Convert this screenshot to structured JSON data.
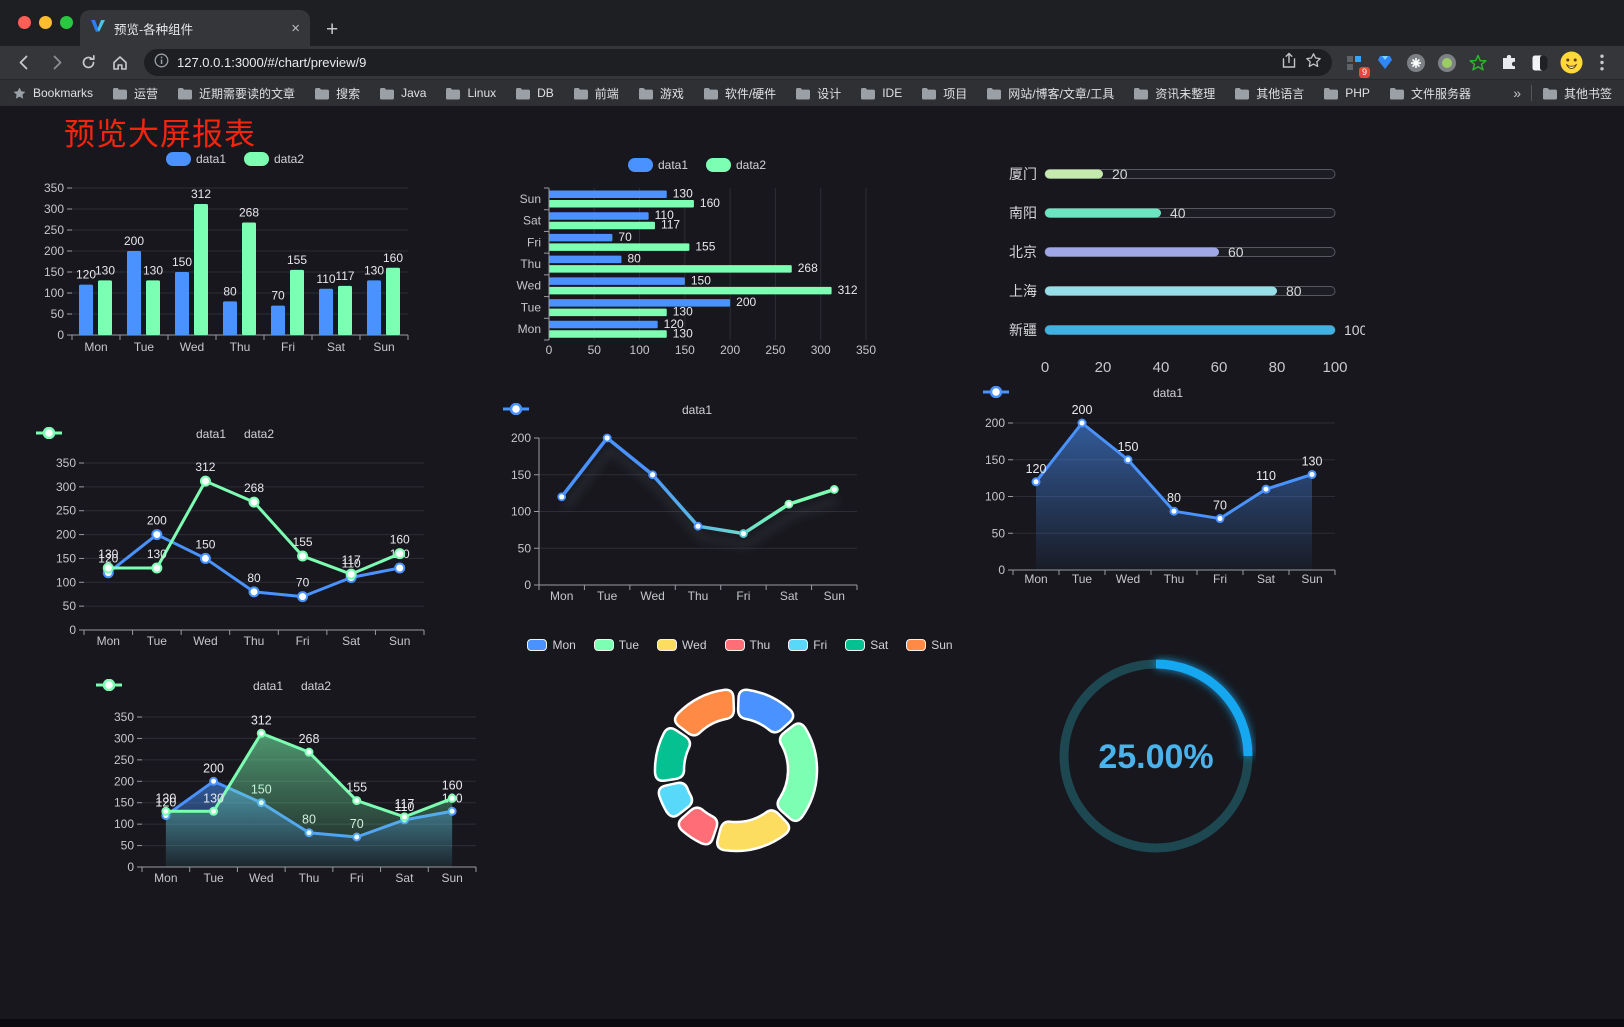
{
  "browser": {
    "tab_title": "预览-各种组件",
    "tab_close": "×",
    "new_tab": "+",
    "url": "127.0.0.1:3000/#/chart/preview/9",
    "bookmarks_label": "Bookmarks",
    "bookmarks": [
      "运营",
      "近期需要读的文章",
      "搜索",
      "Java",
      "Linux",
      "DB",
      "前端",
      "游戏",
      "软件/硬件",
      "设计",
      "IDE",
      "项目",
      "网站/博客/文章/工具",
      "资讯未整理",
      "其他语言",
      "PHP",
      "文件服务器"
    ],
    "bookmarks_overflow": "»",
    "other_bookmarks": "其他书签",
    "extension_badge": "9"
  },
  "page": {
    "title": "预览大屏报表",
    "title_color": "#f3250f",
    "background": "#17171d"
  },
  "palette": [
    "#4992ff",
    "#7cffb2",
    "#fddd60",
    "#ff6e76",
    "#58d9f9",
    "#05c091",
    "#ff8a45"
  ],
  "chart_data": [
    {
      "id": "grouped-bar",
      "type": "bar",
      "categories": [
        "Mon",
        "Tue",
        "Wed",
        "Thu",
        "Fri",
        "Sat",
        "Sun"
      ],
      "series": [
        {
          "name": "data1",
          "color": "#4992ff",
          "values": [
            120,
            200,
            150,
            80,
            70,
            110,
            130
          ]
        },
        {
          "name": "data2",
          "color": "#7cffb2",
          "values": [
            130,
            130,
            312,
            268,
            155,
            117,
            160
          ]
        }
      ],
      "ylim": [
        0,
        350
      ],
      "yticks": [
        0,
        50,
        100,
        150,
        200,
        250,
        300,
        350
      ],
      "legend": [
        "data1",
        "data2"
      ],
      "legend_position": "top",
      "grid": true,
      "labels": true
    },
    {
      "id": "horizontal-bar",
      "type": "hbar",
      "categories": [
        "Mon",
        "Tue",
        "Wed",
        "Thu",
        "Fri",
        "Sat",
        "Sun"
      ],
      "series": [
        {
          "name": "data1",
          "color": "#4992ff",
          "values": [
            120,
            200,
            150,
            80,
            70,
            110,
            130
          ]
        },
        {
          "name": "data2",
          "color": "#7cffb2",
          "values": [
            130,
            130,
            312,
            268,
            155,
            117,
            160
          ]
        }
      ],
      "xlim": [
        0,
        350
      ],
      "xticks": [
        0,
        50,
        100,
        150,
        200,
        250,
        300,
        350
      ],
      "legend": [
        "data1",
        "data2"
      ],
      "legend_position": "top",
      "grid": true,
      "labels": true
    },
    {
      "id": "city-progress",
      "type": "progress",
      "items": [
        {
          "label": "厦门",
          "value": 20,
          "color": "#c4ebad"
        },
        {
          "label": "南阳",
          "value": 40,
          "color": "#6be6c1"
        },
        {
          "label": "北京",
          "value": 60,
          "color": "#a0a7e6"
        },
        {
          "label": "上海",
          "value": 80,
          "color": "#96dee8"
        },
        {
          "label": "新疆",
          "value": 100,
          "color": "#3fb1e3"
        }
      ],
      "xlim": [
        0,
        100
      ],
      "xticks": [
        0,
        20,
        40,
        60,
        80,
        100
      ]
    },
    {
      "id": "line-two-series",
      "type": "line",
      "categories": [
        "Mon",
        "Tue",
        "Wed",
        "Thu",
        "Fri",
        "Sat",
        "Sun"
      ],
      "series": [
        {
          "name": "data1",
          "color": "#4992ff",
          "values": [
            120,
            200,
            150,
            80,
            70,
            110,
            130
          ]
        },
        {
          "name": "data2",
          "color": "#7cffb2",
          "values": [
            130,
            130,
            312,
            268,
            155,
            117,
            160
          ]
        }
      ],
      "ylim": [
        0,
        350
      ],
      "yticks": [
        0,
        50,
        100,
        150,
        200,
        250,
        300,
        350
      ],
      "legend": [
        "data1",
        "data2"
      ],
      "legend_position": "top",
      "grid": true,
      "labels": true
    },
    {
      "id": "gradient-line",
      "type": "gradient-line",
      "categories": [
        "Mon",
        "Tue",
        "Wed",
        "Thu",
        "Fri",
        "Sat",
        "Sun"
      ],
      "series": [
        {
          "name": "data1",
          "gradient": [
            "#4992ff",
            "#7cffb2"
          ],
          "values": [
            120,
            200,
            150,
            80,
            70,
            110,
            130
          ]
        }
      ],
      "ylim": [
        0,
        200
      ],
      "yticks": [
        0,
        50,
        100,
        150,
        200
      ],
      "legend": [
        "data1"
      ],
      "legend_position": "top",
      "grid": true,
      "labels": false
    },
    {
      "id": "area-single",
      "type": "area",
      "categories": [
        "Mon",
        "Tue",
        "Wed",
        "Thu",
        "Fri",
        "Sat",
        "Sun"
      ],
      "series": [
        {
          "name": "data1",
          "color": "#4992ff",
          "values": [
            120,
            200,
            150,
            80,
            70,
            110,
            130
          ]
        }
      ],
      "ylim": [
        0,
        200
      ],
      "yticks": [
        0,
        50,
        100,
        150,
        200
      ],
      "legend": [
        "data1"
      ],
      "legend_position": "top",
      "grid": true,
      "labels": true
    },
    {
      "id": "area-double",
      "type": "area",
      "categories": [
        "Mon",
        "Tue",
        "Wed",
        "Thu",
        "Fri",
        "Sat",
        "Sun"
      ],
      "series": [
        {
          "name": "data1",
          "color": "#4992ff",
          "values": [
            120,
            200,
            150,
            80,
            70,
            110,
            130
          ]
        },
        {
          "name": "data2",
          "color": "#7cffb2",
          "values": [
            130,
            130,
            312,
            268,
            155,
            117,
            160
          ]
        }
      ],
      "ylim": [
        0,
        350
      ],
      "yticks": [
        0,
        50,
        100,
        150,
        200,
        250,
        300,
        350
      ],
      "legend": [
        "data1",
        "data2"
      ],
      "legend_position": "top",
      "grid": true,
      "labels": true
    },
    {
      "id": "weekday-donut",
      "type": "donut",
      "legend": [
        "Mon",
        "Tue",
        "Wed",
        "Thu",
        "Fri",
        "Sat",
        "Sun"
      ],
      "items": [
        {
          "name": "Mon",
          "value": 120,
          "color": "#4992ff"
        },
        {
          "name": "Tue",
          "value": 200,
          "color": "#7cffb2"
        },
        {
          "name": "Wed",
          "value": 150,
          "color": "#fddd60"
        },
        {
          "name": "Thu",
          "value": 80,
          "color": "#ff6e76"
        },
        {
          "name": "Fri",
          "value": 70,
          "color": "#58d9f9"
        },
        {
          "name": "Sat",
          "value": 110,
          "color": "#05c091"
        },
        {
          "name": "Sun",
          "value": 130,
          "color": "#ff8a45"
        }
      ]
    },
    {
      "id": "ring-progress",
      "type": "ring-progress",
      "value": 25,
      "max": 100,
      "label": "25.00%",
      "color": "#17a7f1",
      "track_color": "#1d4852",
      "label_color": "#4ab3ec"
    }
  ]
}
